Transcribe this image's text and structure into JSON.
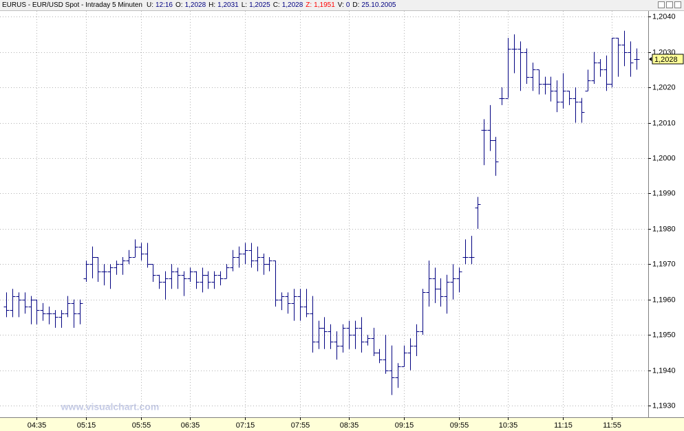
{
  "chart_data": {
    "type": "ohlc",
    "title": "EURUS - EUR/USD Spot - Intraday 5 Minuten",
    "header": [
      {
        "label": "U:",
        "value": "12:16",
        "color": "#000080"
      },
      {
        "label": "O:",
        "value": "1,2028",
        "color": "#000080"
      },
      {
        "label": "H:",
        "value": "1,2031",
        "color": "#000080"
      },
      {
        "label": "L:",
        "value": "1,2025",
        "color": "#000080"
      },
      {
        "label": "C:",
        "value": "1,2028",
        "color": "#000080"
      },
      {
        "label": "Z:",
        "value": "1,1951",
        "color": "#ff0000"
      },
      {
        "label": "V:",
        "value": "0",
        "color": "#000080"
      },
      {
        "label": "D:",
        "value": "25.10.2005",
        "color": "#000080"
      }
    ],
    "watermark": "www.visualchart.com",
    "color": "#000080",
    "grid": true,
    "ylim": [
      1.19267,
      1.20416
    ],
    "yticks": [
      {
        "value": 1.193,
        "label": "1,1930"
      },
      {
        "value": 1.194,
        "label": "1,1940"
      },
      {
        "value": 1.195,
        "label": "1,1950"
      },
      {
        "value": 1.196,
        "label": "1,1960"
      },
      {
        "value": 1.197,
        "label": "1,1970"
      },
      {
        "value": 1.198,
        "label": "1,1980"
      },
      {
        "value": 1.199,
        "label": "1,1990"
      },
      {
        "value": 1.2,
        "label": "1,2000"
      },
      {
        "value": 1.201,
        "label": "1,2010"
      },
      {
        "value": 1.202,
        "label": "1,2020"
      },
      {
        "value": 1.203,
        "label": "1,2030"
      },
      {
        "value": 1.204,
        "label": "1,2040"
      }
    ],
    "last_price": {
      "value": 1.2028,
      "label": "1,2028"
    },
    "categories": [
      null,
      null,
      null,
      null,
      null,
      "04:35",
      null,
      null,
      null,
      null,
      null,
      null,
      null,
      "05:15",
      null,
      null,
      null,
      null,
      null,
      null,
      null,
      null,
      "05:55",
      null,
      null,
      null,
      null,
      null,
      null,
      null,
      "06:35",
      null,
      null,
      null,
      null,
      null,
      null,
      null,
      null,
      "07:15",
      null,
      null,
      null,
      null,
      null,
      null,
      null,
      null,
      "07:55",
      null,
      null,
      null,
      null,
      null,
      null,
      null,
      "08:35",
      null,
      null,
      null,
      null,
      null,
      null,
      null,
      null,
      "09:15",
      null,
      null,
      null,
      null,
      null,
      null,
      null,
      null,
      "09:55",
      null,
      null,
      null,
      null,
      null,
      null,
      null,
      "10:35",
      null,
      null,
      null,
      null,
      null,
      null,
      null,
      null,
      "11:15",
      null,
      null,
      null,
      null,
      null,
      null,
      null,
      "11:55",
      null,
      null,
      null,
      null
    ],
    "open": [
      1.1958,
      1.1957,
      1.1961,
      1.196,
      1.1958,
      1.196,
      1.1957,
      1.1956,
      1.1956,
      1.1955,
      1.1956,
      1.1959,
      1.1956,
      1.1966,
      1.197,
      1.1972,
      1.1968,
      1.1968,
      1.1969,
      1.197,
      1.1971,
      1.1972,
      1.1975,
      1.1973,
      1.197,
      1.1967,
      1.1965,
      1.1966,
      1.1968,
      1.1967,
      1.1966,
      1.1968,
      1.1965,
      1.1967,
      1.1965,
      1.1967,
      1.1966,
      1.1969,
      1.1972,
      1.1973,
      1.1974,
      1.1971,
      1.1972,
      1.197,
      1.1971,
      1.196,
      1.1961,
      1.1959,
      1.1961,
      1.1958,
      1.1956,
      1.1948,
      1.1952,
      1.1951,
      1.1948,
      1.1947,
      1.1952,
      1.195,
      1.1952,
      1.1948,
      1.1949,
      1.1945,
      1.1943,
      1.194,
      1.1938,
      1.1941,
      1.1945,
      1.1947,
      1.1951,
      1.1962,
      1.1966,
      1.1963,
      1.1961,
      1.1965,
      1.1966,
      1.1972,
      1.1972,
      1.1986,
      1.2008,
      1.2008,
      1.2005,
      1.2017,
      1.2017,
      1.2031,
      1.2031,
      1.203,
      1.2023,
      1.2025,
      1.2021,
      1.2021,
      1.2019,
      1.2016,
      1.2019,
      1.2017,
      1.2016,
      1.2019,
      1.2022,
      1.2027,
      1.2025,
      1.2021,
      1.2034,
      1.2032,
      1.203,
      1.2028
    ],
    "high": [
      1.1962,
      1.1963,
      1.1962,
      1.1962,
      1.1961,
      1.196,
      1.1959,
      1.1958,
      1.1957,
      1.1957,
      1.1961,
      1.196,
      1.196,
      1.1971,
      1.1975,
      1.1972,
      1.197,
      1.197,
      1.1971,
      1.1972,
      1.1974,
      1.1977,
      1.1976,
      1.1976,
      1.197,
      1.1967,
      1.1968,
      1.197,
      1.1969,
      1.1968,
      1.1969,
      1.1968,
      1.1969,
      1.1968,
      1.1968,
      1.1968,
      1.197,
      1.1974,
      1.1975,
      1.1976,
      1.1976,
      1.1975,
      1.1973,
      1.1972,
      1.1971,
      1.1962,
      1.1962,
      1.1963,
      1.1963,
      1.1963,
      1.1961,
      1.1954,
      1.1955,
      1.1953,
      1.1951,
      1.1953,
      1.1954,
      1.1954,
      1.1955,
      1.195,
      1.1952,
      1.1946,
      1.195,
      1.1947,
      1.1942,
      1.1947,
      1.1949,
      1.1953,
      1.1963,
      1.1971,
      1.1969,
      1.1966,
      1.1967,
      1.197,
      1.1969,
      1.1977,
      1.1978,
      1.1989,
      1.2011,
      1.2015,
      1.2006,
      1.202,
      1.2034,
      1.2035,
      1.2033,
      1.2031,
      1.2027,
      1.2025,
      1.2023,
      1.2023,
      1.2022,
      1.2024,
      1.2019,
      1.202,
      1.2017,
      1.2025,
      1.203,
      1.2028,
      1.2029,
      1.2034,
      1.2034,
      1.2036,
      1.2033,
      1.2031
    ],
    "low": [
      1.1955,
      1.1955,
      1.1955,
      1.1956,
      1.1953,
      1.1953,
      1.1954,
      1.1953,
      1.1952,
      1.1952,
      1.1955,
      1.1952,
      1.1953,
      1.1965,
      1.1966,
      1.1965,
      1.1964,
      1.1963,
      1.1967,
      1.1967,
      1.197,
      1.1972,
      1.1971,
      1.1969,
      1.1965,
      1.1963,
      1.196,
      1.1963,
      1.1963,
      1.1961,
      1.1965,
      1.1963,
      1.1962,
      1.1963,
      1.1963,
      1.1964,
      1.1966,
      1.1968,
      1.1969,
      1.197,
      1.1969,
      1.1968,
      1.1967,
      1.1968,
      1.1958,
      1.1957,
      1.1956,
      1.1954,
      1.1954,
      1.1955,
      1.1945,
      1.1946,
      1.1946,
      1.1946,
      1.1943,
      1.1945,
      1.1946,
      1.1946,
      1.1945,
      1.1947,
      1.1944,
      1.1942,
      1.1939,
      1.1933,
      1.1935,
      1.1941,
      1.194,
      1.1944,
      1.195,
      1.1958,
      1.1959,
      1.1958,
      1.1956,
      1.196,
      1.1962,
      1.197,
      1.197,
      1.198,
      1.1998,
      1.2002,
      1.1995,
      1.2015,
      1.2017,
      1.2024,
      1.2019,
      1.2021,
      1.2019,
      1.2018,
      1.2018,
      1.2016,
      1.2013,
      1.2014,
      1.2015,
      1.201,
      1.201,
      1.2019,
      1.2021,
      1.2023,
      1.2019,
      1.202,
      1.2023,
      1.2026,
      1.2023,
      1.2025
    ],
    "close": [
      1.1957,
      1.1961,
      1.196,
      1.1958,
      1.196,
      1.1957,
      1.1956,
      1.1956,
      1.1955,
      1.1956,
      1.1959,
      1.1956,
      1.1959,
      1.197,
      1.1972,
      1.1968,
      1.1968,
      1.1969,
      1.197,
      1.1971,
      1.1972,
      1.1975,
      1.1973,
      1.197,
      1.1967,
      1.1965,
      1.1966,
      1.1968,
      1.1967,
      1.1966,
      1.1968,
      1.1965,
      1.1967,
      1.1965,
      1.1967,
      1.1966,
      1.1969,
      1.1972,
      1.1973,
      1.1974,
      1.1971,
      1.1972,
      1.197,
      1.1971,
      1.196,
      1.1961,
      1.1959,
      1.1961,
      1.1958,
      1.1956,
      1.1948,
      1.1952,
      1.1951,
      1.1948,
      1.1947,
      1.1952,
      1.195,
      1.1952,
      1.1948,
      1.1949,
      1.1945,
      1.1943,
      1.194,
      1.1938,
      1.1941,
      1.1945,
      1.1947,
      1.1951,
      1.1962,
      1.1966,
      1.1963,
      1.1961,
      1.1965,
      1.1966,
      1.1968,
      1.1972,
      1.1972,
      1.1987,
      1.2008,
      1.2005,
      1.1999,
      1.2017,
      1.2031,
      1.2031,
      1.203,
      1.2023,
      1.2025,
      1.2021,
      1.2021,
      1.2019,
      1.2016,
      1.2019,
      1.2017,
      1.2016,
      1.2013,
      1.2022,
      1.2027,
      1.2025,
      1.2021,
      1.2034,
      1.2032,
      1.203,
      1.2027,
      1.2028
    ]
  }
}
